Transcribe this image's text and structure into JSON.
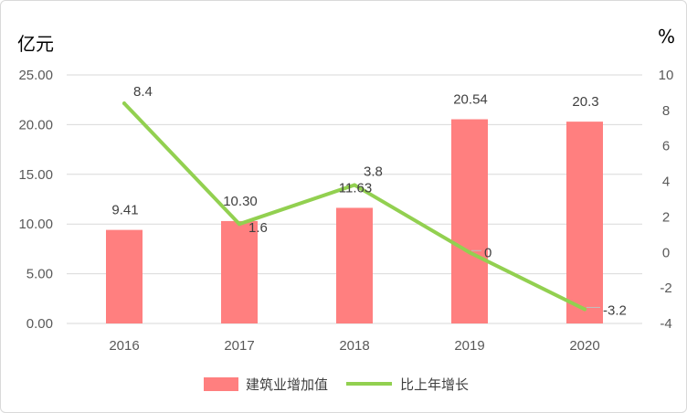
{
  "chart_data": {
    "type": "bar",
    "categories": [
      "2016",
      "2017",
      "2018",
      "2019",
      "2020"
    ],
    "series": [
      {
        "name": "建筑业增加值",
        "type": "bar",
        "axis": "left",
        "values": [
          9.41,
          10.3,
          11.63,
          20.54,
          20.3
        ],
        "labels": [
          "9.41",
          "10.30",
          "11.63",
          "20.54",
          "20.3"
        ],
        "color": "#ff7f7f"
      },
      {
        "name": "比上年增长",
        "type": "line",
        "axis": "right",
        "values": [
          8.4,
          1.6,
          3.8,
          0,
          -3.2
        ],
        "labels": [
          "8.4",
          "1.6",
          "3.8",
          "0",
          "-3.2"
        ],
        "color": "#92d050"
      }
    ],
    "y_left": {
      "unit": "亿元",
      "ylim": [
        0,
        25
      ],
      "ticks": [
        "0.00",
        "5.00",
        "10.00",
        "15.00",
        "20.00",
        "25.00"
      ]
    },
    "y_right": {
      "unit": "%",
      "ylim": [
        -4,
        10
      ],
      "ticks": [
        "-4",
        "-2",
        "0",
        "2",
        "4",
        "6",
        "8",
        "10"
      ]
    },
    "grid": true,
    "legend": "bottom-center"
  }
}
